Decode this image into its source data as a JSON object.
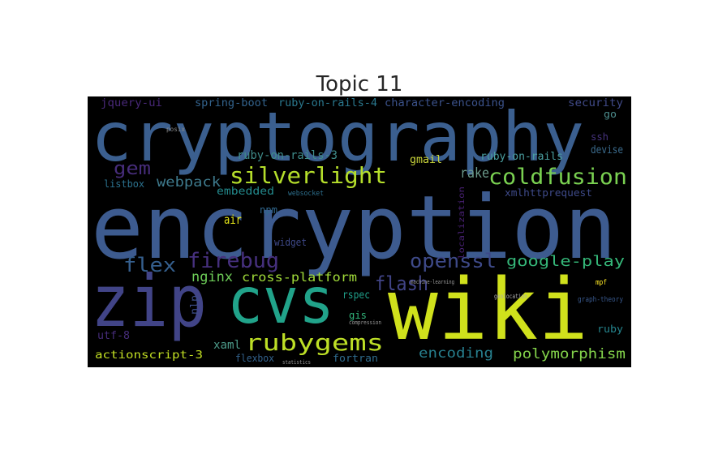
{
  "chart_data": {
    "type": "wordcloud",
    "title": "Topic 11",
    "background": "#000000",
    "words": [
      {
        "text": "cryptography",
        "color": "#3b5f8f"
      },
      {
        "text": "encryption",
        "color": "#3d5b8f"
      },
      {
        "text": "zip",
        "color": "#414487"
      },
      {
        "text": "cvs",
        "color": "#21a38a"
      },
      {
        "text": "wiki",
        "color": "#d0e11c"
      },
      {
        "text": "silverlight",
        "color": "#b5de2b"
      },
      {
        "text": "coldfusion",
        "color": "#7ad151"
      },
      {
        "text": "gem",
        "color": "#472d7b"
      },
      {
        "text": "webpack",
        "color": "#3e7a8d"
      },
      {
        "text": "rake",
        "color": "#6c9b8c"
      },
      {
        "text": "gmail",
        "color": "#c9d43a"
      },
      {
        "text": "ruby-on-rails-3",
        "color": "#3f8c8a"
      },
      {
        "text": "ruby-on-rails",
        "color": "#4a9fa0"
      },
      {
        "text": "devise",
        "color": "#3b6b8c"
      },
      {
        "text": "ssh",
        "color": "#46337e"
      },
      {
        "text": "go",
        "color": "#4c8c8c"
      },
      {
        "text": "security",
        "color": "#404a88"
      },
      {
        "text": "jquery-ui",
        "color": "#482878"
      },
      {
        "text": "spring-boot",
        "color": "#33638d"
      },
      {
        "text": "ruby-on-rails-4",
        "color": "#2a788e"
      },
      {
        "text": "character-encoding",
        "color": "#3b528b"
      },
      {
        "text": "posix",
        "color": "#888888"
      },
      {
        "text": "listbox",
        "color": "#2c728e"
      },
      {
        "text": "embedded",
        "color": "#238a8d"
      },
      {
        "text": "websocket",
        "color": "#2d708e"
      },
      {
        "text": "xmlhttprequest",
        "color": "#3e4a89"
      },
      {
        "text": "npm",
        "color": "#31688e"
      },
      {
        "text": "air",
        "color": "#e2e418"
      },
      {
        "text": "widget",
        "color": "#3e4989"
      },
      {
        "text": "flex",
        "color": "#355f8d"
      },
      {
        "text": "firebug",
        "color": "#46307e"
      },
      {
        "text": "openssl",
        "color": "#3e4a89"
      },
      {
        "text": "google-play",
        "color": "#35b779"
      },
      {
        "text": "nginx",
        "color": "#6ece58"
      },
      {
        "text": "cross-platform",
        "color": "#a0da39"
      },
      {
        "text": "flash",
        "color": "#414487"
      },
      {
        "text": "rspec",
        "color": "#1f9e89"
      },
      {
        "text": "nlp",
        "color": "#3d4e8a"
      },
      {
        "text": "utf-8",
        "color": "#472d7b"
      },
      {
        "text": "xaml",
        "color": "#4d9c8b"
      },
      {
        "text": "rubygems",
        "color": "#bddf26"
      },
      {
        "text": "gis",
        "color": "#31b57b"
      },
      {
        "text": "encoding",
        "color": "#277f8e"
      },
      {
        "text": "polymorphism",
        "color": "#84d44b"
      },
      {
        "text": "actionscript-3",
        "color": "#c2df23"
      },
      {
        "text": "flexbox",
        "color": "#33628d"
      },
      {
        "text": "fortran",
        "color": "#2f6c8e"
      },
      {
        "text": "ruby",
        "color": "#25858e"
      },
      {
        "text": "graph-theory",
        "color": "#38588c"
      },
      {
        "text": "geolocation",
        "color": "#aaaaaa"
      },
      {
        "text": "mpf",
        "color": "#fde725"
      },
      {
        "text": "localization",
        "color": "#482173"
      },
      {
        "text": "compression",
        "color": "#999999"
      },
      {
        "text": "statistics",
        "color": "#999999"
      },
      {
        "text": "machine-learning",
        "color": "#999999"
      }
    ]
  }
}
